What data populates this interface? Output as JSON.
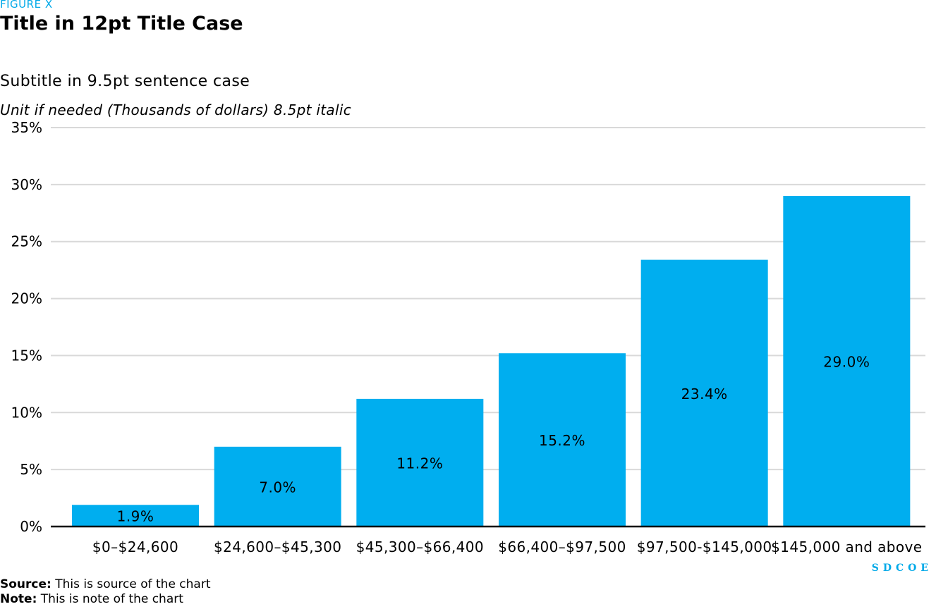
{
  "header": {
    "figure_label": "FIGURE X",
    "title": "Title in 12pt Title Case",
    "subtitle": "Subtitle in 9.5pt sentence case",
    "unit": "Unit if needed (Thousands of dollars) 8.5pt italic"
  },
  "chart_data": {
    "type": "bar",
    "categories": [
      "$0–$24,600",
      "$24,600–$45,300",
      "$45,300–$66,400",
      "$66,400–$97,500",
      "$97,500-$145,000",
      "$145,000 and above"
    ],
    "values": [
      1.9,
      7.0,
      11.2,
      15.2,
      23.4,
      29.0
    ],
    "data_labels": [
      "1.9%",
      "7.0%",
      "11.2%",
      "15.2%",
      "23.4%",
      "29.0%"
    ],
    "yticks": [
      0,
      5,
      10,
      15,
      20,
      25,
      30,
      35
    ],
    "ytick_labels": [
      "0%",
      "5%",
      "10%",
      "15%",
      "20%",
      "25%",
      "30%",
      "35%"
    ],
    "ylim": [
      0,
      35
    ],
    "grid": true,
    "colors": {
      "bar": "#00aeef",
      "grid": "#d9d9d9",
      "axis": "#000000"
    }
  },
  "brand": "SDCOE",
  "footer": {
    "source_label": "Source:",
    "source_text": " This is source of the chart",
    "note_label": "Note:",
    "note_text": " This is note of the chart"
  }
}
